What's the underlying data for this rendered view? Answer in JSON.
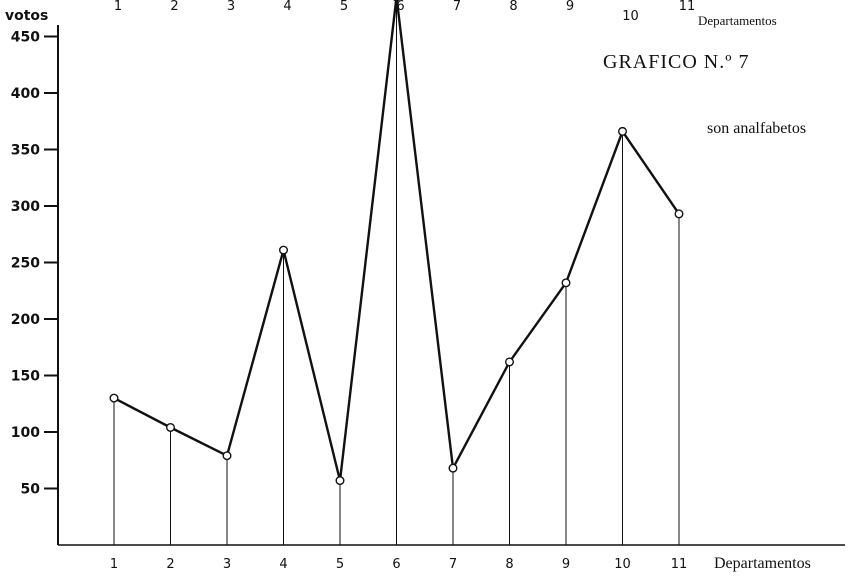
{
  "chart_data": {
    "type": "line",
    "title": "GRAFICO N.º 7",
    "subtitle": "son analfabetos",
    "ylabel": "votos",
    "xlabel": "Departamentos",
    "top_xlabel": "Departamentos",
    "ylim": [
      0,
      480
    ],
    "yticks": [
      "450",
      "400",
      "350",
      "300",
      "250",
      "200",
      "150",
      "100",
      "50"
    ],
    "categories": [
      "1",
      "2",
      "3",
      "4",
      "5",
      "6",
      "7",
      "8",
      "9",
      "10",
      "11"
    ],
    "values": [
      130,
      104,
      79,
      261,
      57,
      485,
      68,
      162,
      232,
      366,
      293
    ],
    "grid": false,
    "legend": "none"
  }
}
